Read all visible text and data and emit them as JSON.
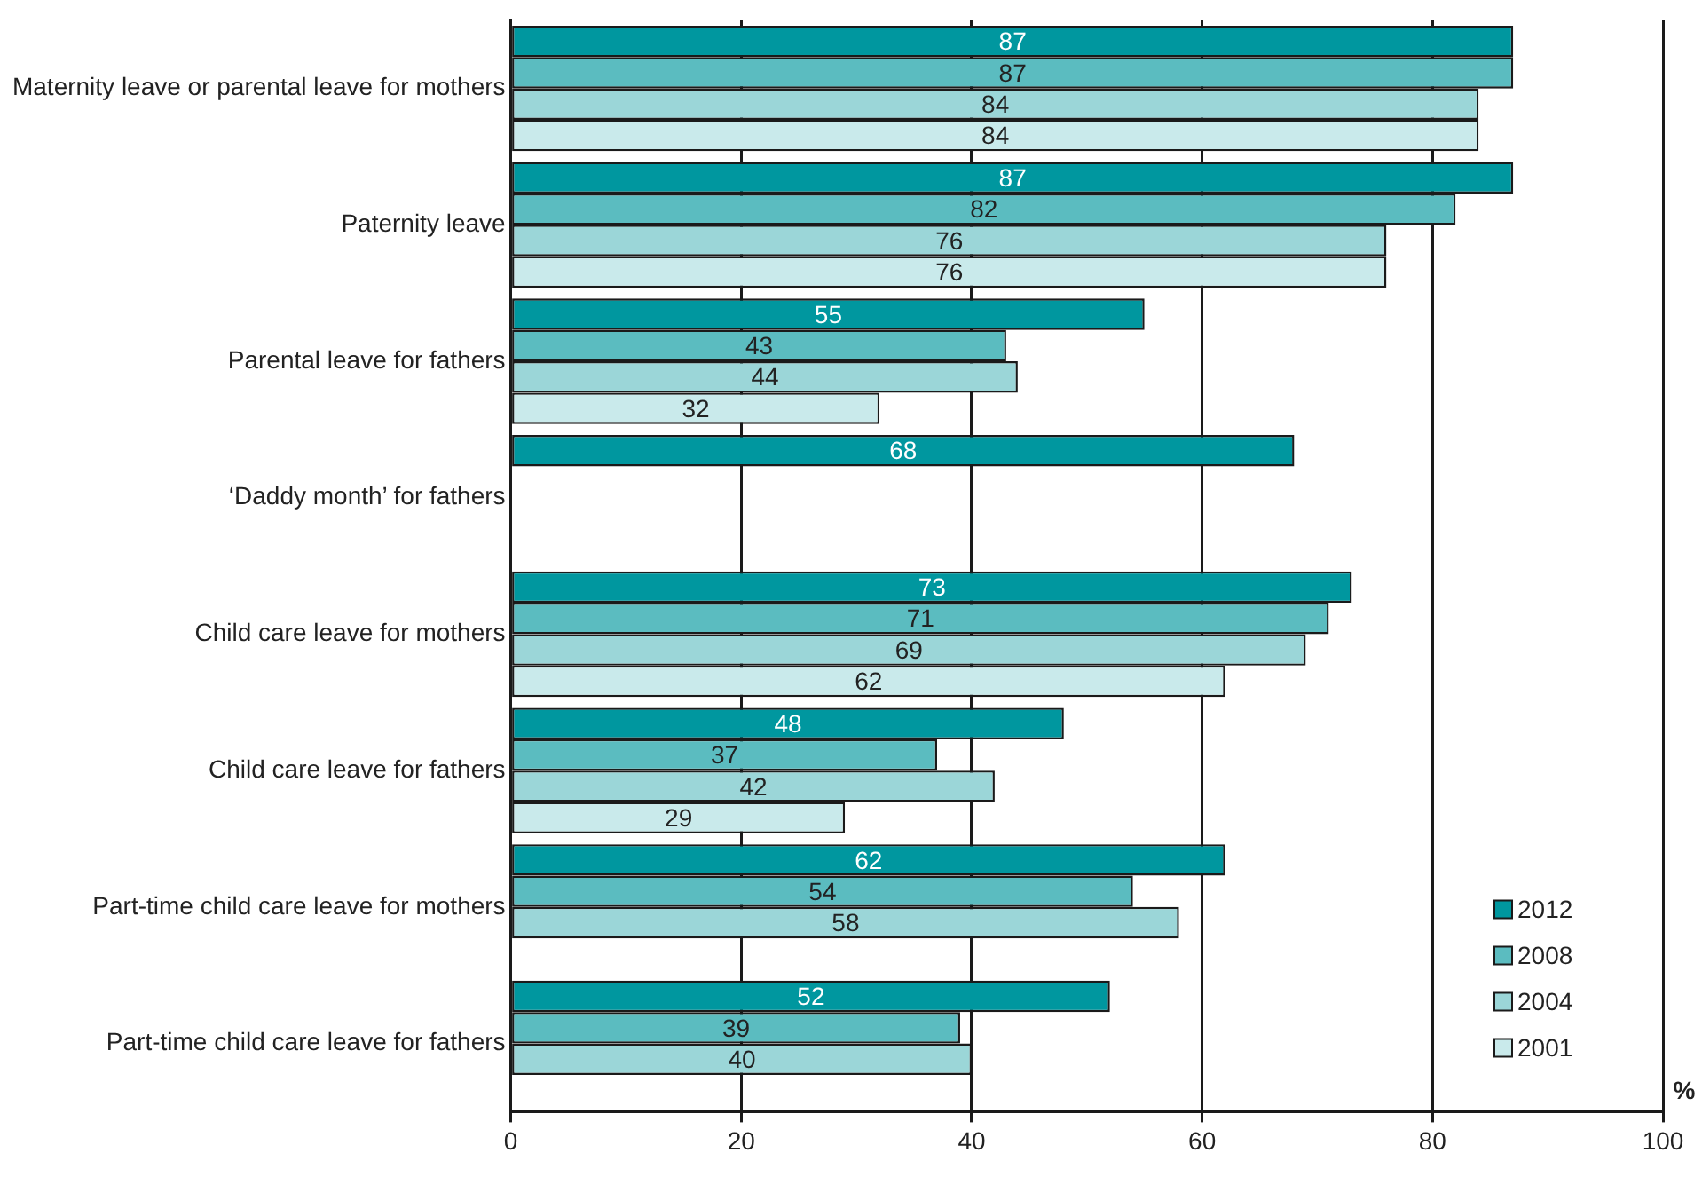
{
  "chart_data": {
    "type": "bar",
    "orientation": "horizontal",
    "xlabel": "%",
    "categories": [
      "Maternity leave or parental leave for mothers",
      "Paternity leave",
      "Parental leave for fathers",
      "‘Daddy month’ for fathers",
      "Child care leave for mothers",
      "Child care leave for fathers",
      "Part-time child care leave for mothers",
      "Part-time child care leave for fathers"
    ],
    "series": [
      {
        "name": "2012",
        "color": "#00979f",
        "values": [
          87,
          87,
          55,
          68,
          73,
          48,
          62,
          52
        ]
      },
      {
        "name": "2008",
        "color": "#5bbcc0",
        "values": [
          87,
          82,
          43,
          null,
          71,
          37,
          54,
          39
        ]
      },
      {
        "name": "2004",
        "color": "#9bd6d8",
        "values": [
          84,
          76,
          44,
          null,
          69,
          42,
          58,
          40
        ]
      },
      {
        "name": "2001",
        "color": "#c9eaeb",
        "values": [
          84,
          76,
          32,
          null,
          62,
          29,
          null,
          null
        ]
      }
    ],
    "xlim": [
      0,
      100
    ],
    "xticks": [
      0,
      20,
      40,
      60,
      80,
      100
    ],
    "grid": "x",
    "legend": "bottom right",
    "data_labels": true
  }
}
